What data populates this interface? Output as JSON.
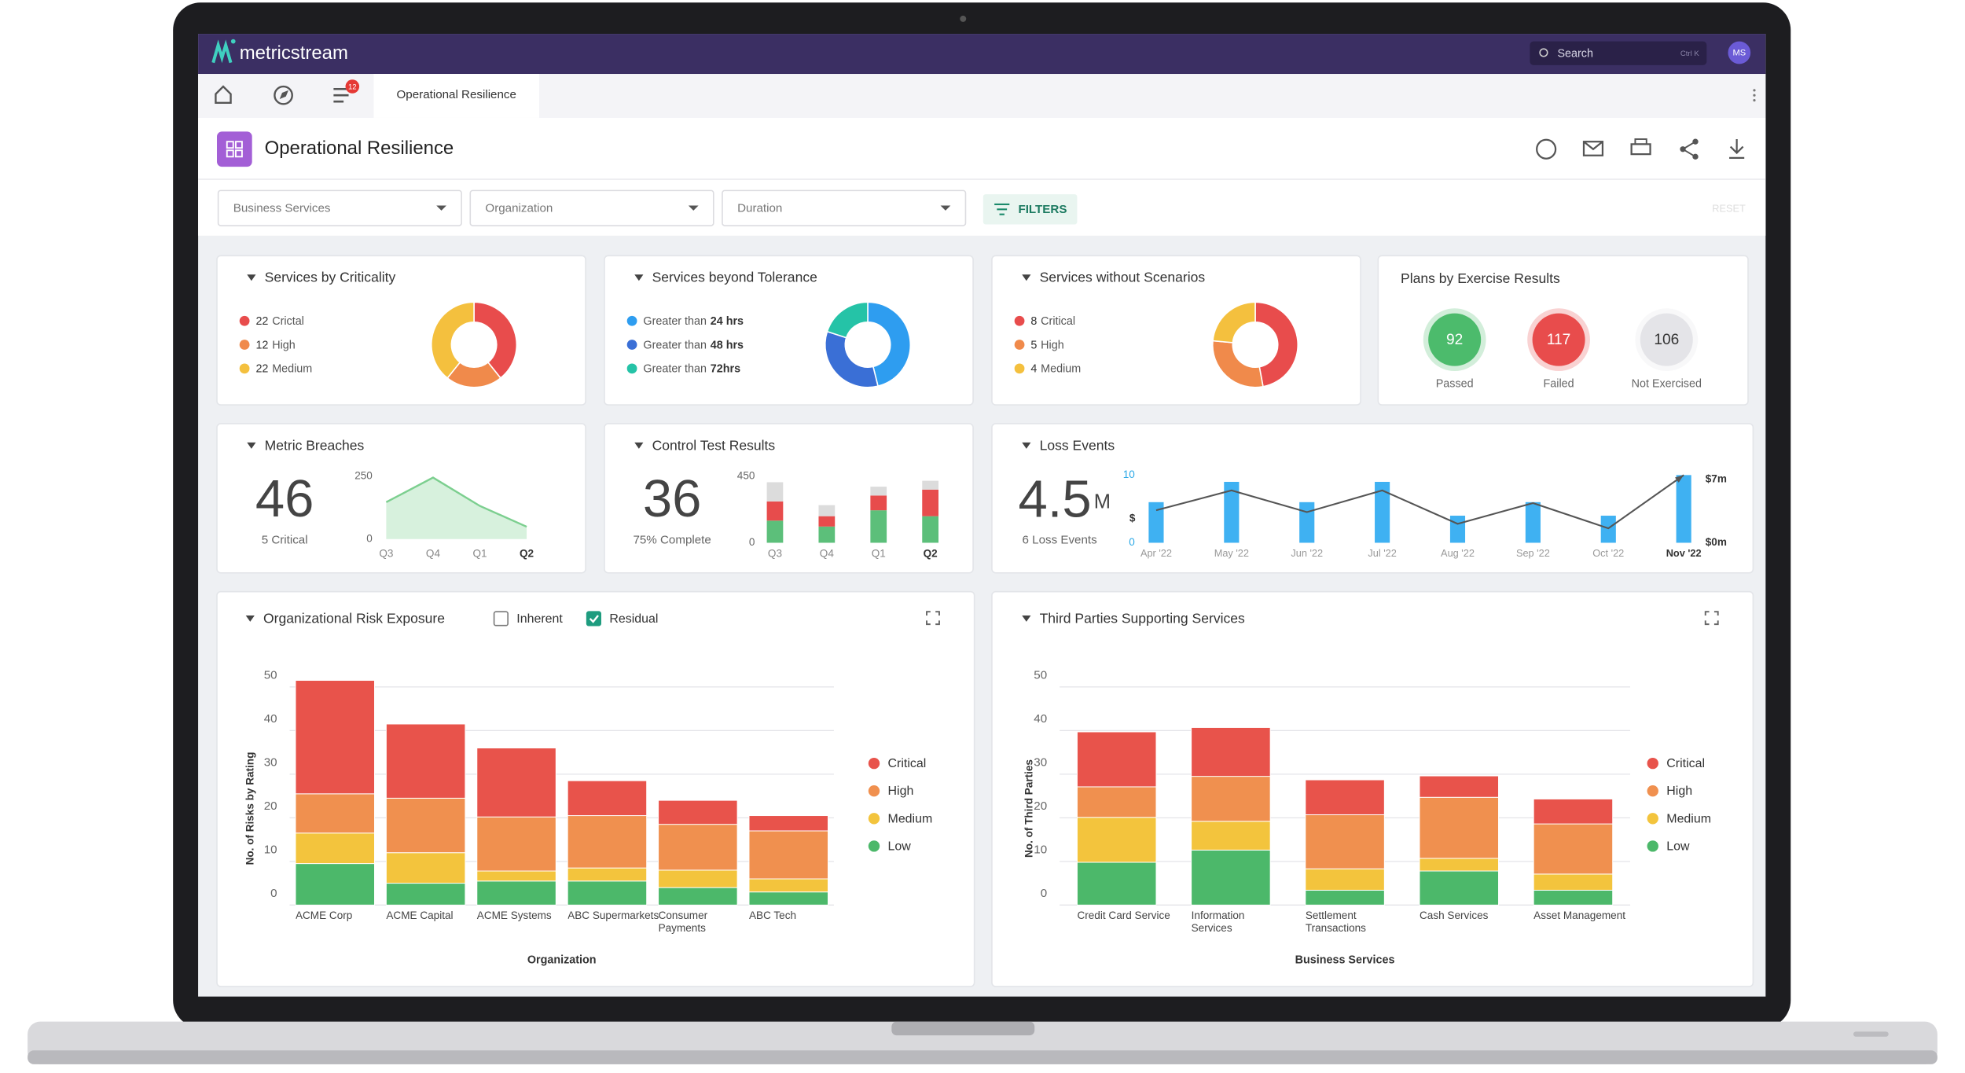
{
  "app": {
    "brand": "metricstream",
    "search": "Search",
    "shortcut": "Ctrl K",
    "avatar": "MS",
    "notification_count": 12,
    "tab": "Operational Resilience"
  },
  "page": {
    "title": "Operational Resilience"
  },
  "filters": {
    "dropdowns": [
      "Business Services",
      "Organization",
      "Duration"
    ],
    "button": "FILTERS",
    "reset": "RESET"
  },
  "widgets": {
    "criticality": {
      "title": "Services by Criticality",
      "items": [
        {
          "value": 22,
          "label": "Crictal",
          "color": "#e84c4c"
        },
        {
          "value": 12,
          "label": "High",
          "color": "#f08a4b"
        },
        {
          "value": 22,
          "label": "Medium",
          "color": "#f4c03e"
        }
      ]
    },
    "tolerance": {
      "title": "Services beyond Tolerance",
      "items": [
        {
          "prefix": "Greater than",
          "emphasis": "24 hrs",
          "value": 30,
          "color": "#2e9df0"
        },
        {
          "prefix": "Greater than",
          "emphasis": "48 hrs",
          "value": 22,
          "color": "#3a6fd6"
        },
        {
          "prefix": "Greater than",
          "emphasis": "72hrs",
          "value": 13,
          "color": "#25c3a7"
        }
      ]
    },
    "scenarios": {
      "title": "Services without Scenarios",
      "items": [
        {
          "value": 8,
          "label": "Critical",
          "color": "#e84c4c"
        },
        {
          "value": 5,
          "label": "High",
          "color": "#f08a4b"
        },
        {
          "value": 4,
          "label": "Medium",
          "color": "#f4c03e"
        }
      ]
    },
    "plans": {
      "title": "Plans by Exercise Results",
      "items": [
        {
          "value": 92,
          "label": "Passed",
          "color": "#4cbb6c"
        },
        {
          "value": 117,
          "label": "Failed",
          "color": "#e84c4c"
        },
        {
          "value": 106,
          "label": "Not Exercised",
          "color": "#e4e4e8"
        }
      ]
    },
    "metric_breaches": {
      "title": "Metric Breaches",
      "kpi": 46,
      "caption": "5 Critical",
      "chart": {
        "type": "area",
        "categories": [
          "Q3",
          "Q4",
          "Q1",
          "Q2"
        ],
        "values": [
          147,
          245,
          132,
          49
        ],
        "color": "#7ccf8f",
        "ylim": [
          0,
          250
        ],
        "yticks": [
          0,
          250
        ]
      }
    },
    "control_tests": {
      "title": "Control Test Results",
      "kpi": 36,
      "caption": "75% Complete",
      "chart": {
        "type": "stacked-bar",
        "categories": [
          "Q3",
          "Q4",
          "Q1",
          "Q2"
        ],
        "ylim": [
          0,
          450
        ],
        "yticks": [
          0,
          450
        ],
        "series": [
          {
            "color": "#5cbf7a",
            "values": [
              150,
              110,
              220,
              180
            ]
          },
          {
            "color": "#e74c4c",
            "values": [
              130,
              70,
              100,
              180
            ]
          },
          {
            "color": "#dcdcdc",
            "values": [
              130,
              75,
              60,
              60
            ]
          }
        ]
      }
    },
    "loss_events": {
      "title": "Loss Events",
      "kpi": "4.5",
      "unit": "M",
      "caption": "6 Loss Events",
      "chart": {
        "type": "bar-line",
        "categories": [
          "Apr '22",
          "May '22",
          "Jun '22",
          "Jul '22",
          "Aug '22",
          "Sep '22",
          "Oct '22",
          "Nov '22"
        ],
        "ylabel": "$",
        "ylim": [
          0,
          10
        ],
        "yticks": [
          0,
          10
        ],
        "y2lim": [
          0,
          7.5
        ],
        "y2ticks": [
          {
            "value": 0,
            "label": "$0m"
          },
          {
            "value": 7,
            "label": "$7m"
          }
        ],
        "series": [
          {
            "type": "bar",
            "color": "#3fb1f2",
            "values": [
              6,
              9,
              6,
              9,
              4,
              6,
              4,
              10
            ]
          },
          {
            "type": "line",
            "axis": "y2",
            "color": "#555555",
            "values": [
              3.6,
              5.8,
              3.4,
              5.8,
              2.1,
              4.4,
              1.6,
              7.5
            ]
          }
        ]
      }
    },
    "org_risk": {
      "title": "Organizational Risk Exposure",
      "options": [
        {
          "label": "Inherent",
          "checked": false
        },
        {
          "label": "Residual",
          "checked": true
        }
      ],
      "chart": {
        "type": "stacked-bar",
        "categories": [
          "ACME Corp",
          "ACME Capital",
          "ACME Systems",
          "ABC Supermarkets",
          "Consumer Payments",
          "ABC Tech"
        ],
        "xlabel": "Organization",
        "ylabel": "No. of Risks by Rating",
        "ylim": [
          0,
          50
        ],
        "yticks": [
          0,
          10,
          20,
          30,
          40,
          50
        ],
        "grid": true,
        "legend": "right",
        "series": [
          {
            "name": "Critical",
            "color": "#e8534b",
            "values": [
              26,
              17,
              15.8,
              8,
              5.5,
              3.5
            ]
          },
          {
            "name": "High",
            "color": "#f0904f",
            "values": [
              9,
              12.5,
              12.4,
              12,
              10.5,
              11
            ]
          },
          {
            "name": "Medium",
            "color": "#f3c43d",
            "values": [
              7,
              7,
              2.3,
              3,
              4,
              3
            ]
          },
          {
            "name": "Low",
            "color": "#4cb86a",
            "values": [
              9.5,
              5,
              5.5,
              5.5,
              4,
              3
            ]
          }
        ]
      }
    },
    "third_parties": {
      "title": "Third Parties Supporting Services",
      "chart": {
        "type": "stacked-bar",
        "categories": [
          "Credit Card Service",
          "Information Services",
          "Settlement Transactions",
          "Cash Services",
          "Asset Management"
        ],
        "xlabel": "Business Services",
        "ylabel": "No. of Third Parties",
        "ylim": [
          0,
          50
        ],
        "yticks": [
          0,
          10,
          20,
          30,
          40,
          50
        ],
        "grid": true,
        "legend": "right",
        "series": [
          {
            "name": "Critical",
            "color": "#e8534b",
            "values": [
              12.6,
              11.2,
              8,
              4.9,
              5.7
            ]
          },
          {
            "name": "High",
            "color": "#f0904f",
            "values": [
              7,
              10.3,
              12.4,
              14,
              11.5
            ]
          },
          {
            "name": "Medium",
            "color": "#f3c43d",
            "values": [
              10.3,
              6.6,
              4.9,
              2.9,
              3.7
            ]
          },
          {
            "name": "Low",
            "color": "#4cb86a",
            "values": [
              9.8,
              12.6,
              3.4,
              7.8,
              3.4
            ]
          }
        ]
      }
    }
  }
}
